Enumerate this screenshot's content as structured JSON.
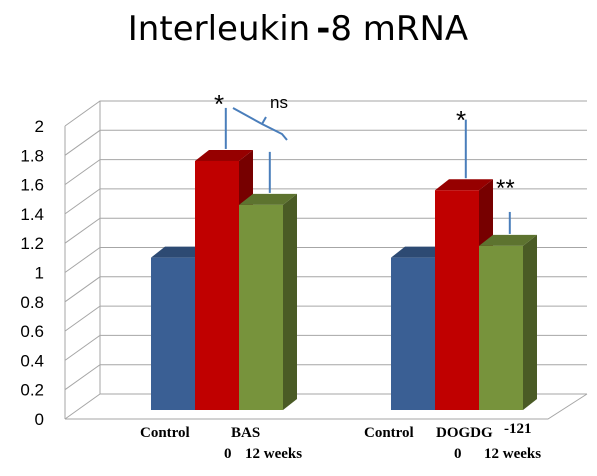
{
  "chart_data": {
    "type": "bar",
    "title_main": "Interleukin",
    "title_dash": "-",
    "title_rest": "8 mRNA",
    "ylim": [
      0,
      2
    ],
    "yticks": [
      "0",
      "0.2",
      "0.4",
      "0.6",
      "0.8",
      "1",
      "1.2",
      "1.4",
      "1.6",
      "1.8",
      "2"
    ],
    "grid": true,
    "groups": [
      {
        "labels": {
          "control": "Control",
          "treatment": "BAS",
          "zero": "0",
          "weeks": "12 weeks"
        },
        "bars": [
          {
            "value": 1.04,
            "color": "#3A5F94"
          },
          {
            "value": 1.7,
            "color": "#C00000",
            "error": 0.28
          },
          {
            "value": 1.4,
            "color": "#77933C",
            "error": 0.28
          }
        ]
      },
      {
        "labels": {
          "control": "Control",
          "treatment": "DOGDG",
          "superscript": "-121",
          "zero": "0",
          "weeks": "12 weeks"
        },
        "bars": [
          {
            "value": 1.04,
            "color": "#3A5F94"
          },
          {
            "value": 1.5,
            "color": "#C00000",
            "error": 0.4
          },
          {
            "value": 1.12,
            "color": "#77933C",
            "error": 0.15
          }
        ]
      }
    ],
    "annotations": {
      "star1": "*",
      "ns": "ns",
      "star2": "*",
      "star3": "**"
    }
  }
}
